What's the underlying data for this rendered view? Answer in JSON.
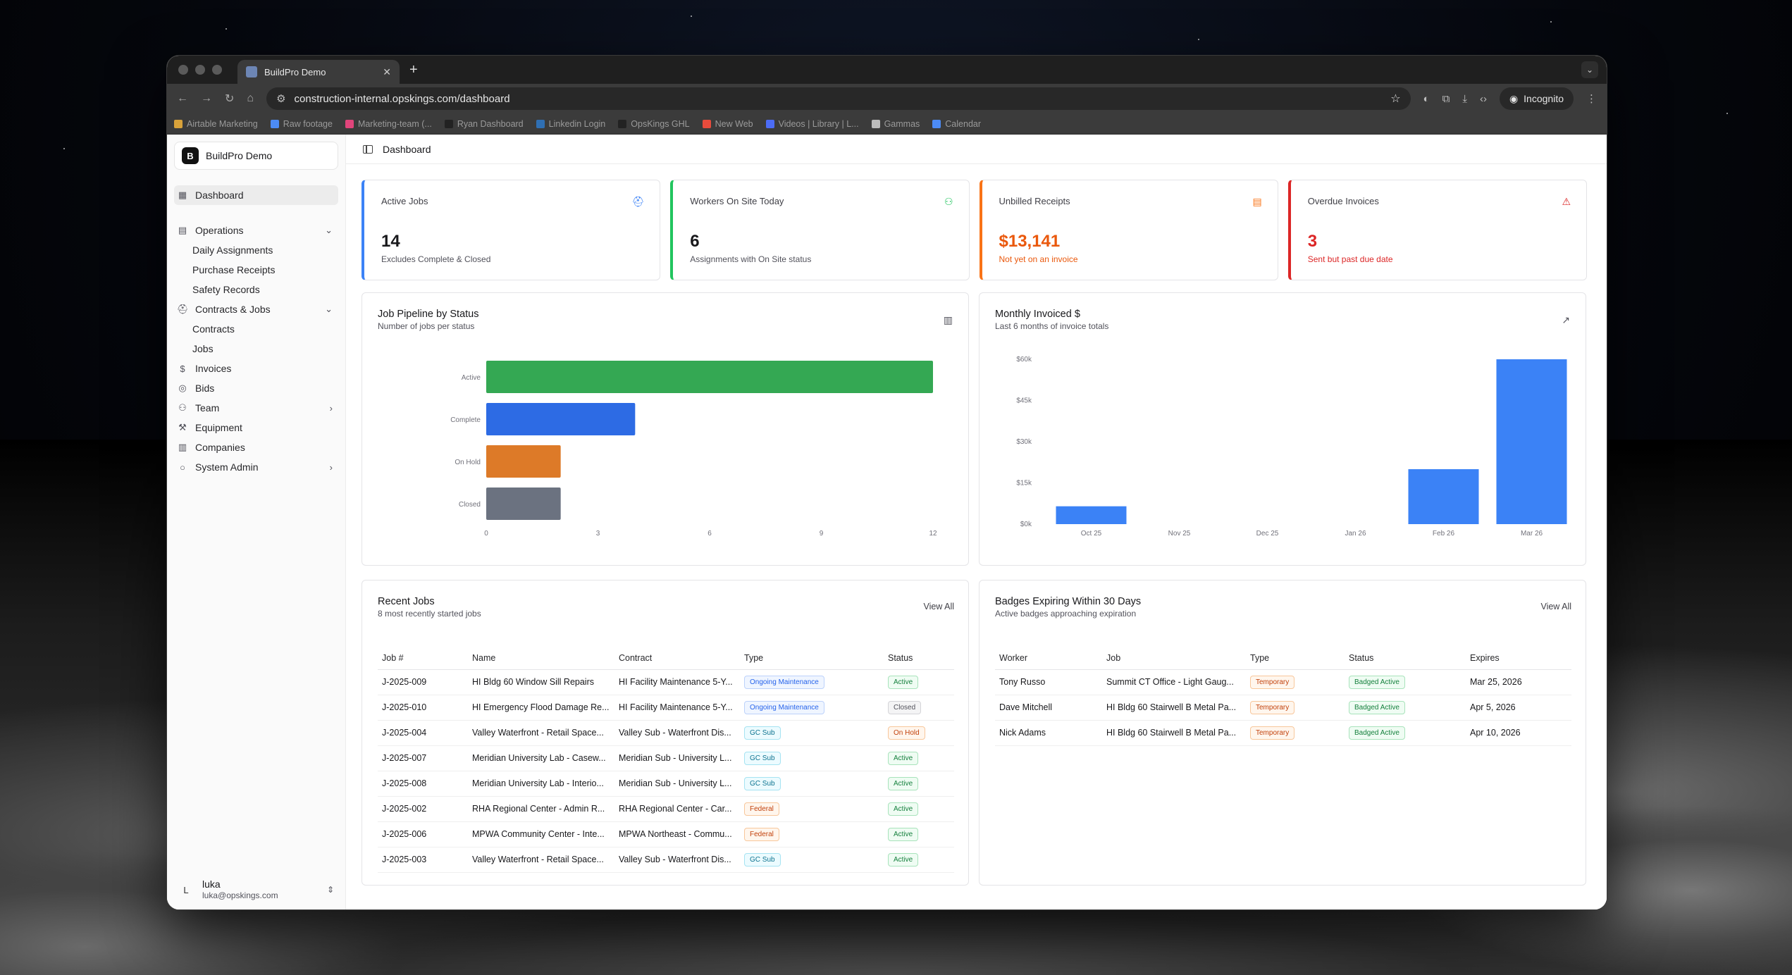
{
  "browser": {
    "tab_title": "BuildPro Demo",
    "url_domain": "construction-internal.opskings.com",
    "url_path": "/dashboard",
    "incognito_label": "Incognito",
    "bookmarks": [
      {
        "label": "Airtable Marketing",
        "color": "#d8a23a"
      },
      {
        "label": "Raw footage",
        "color": "#4c8bf5"
      },
      {
        "label": "Marketing-team (...",
        "color": "#e0457b"
      },
      {
        "label": "Ryan Dashboard",
        "color": "#222222"
      },
      {
        "label": "Linkedin Login",
        "color": "#2f6fb3"
      },
      {
        "label": "OpsKings GHL",
        "color": "#222222"
      },
      {
        "label": "New Web",
        "color": "#e74b3c"
      },
      {
        "label": "Videos | Library | L...",
        "color": "#4c6cf5"
      },
      {
        "label": "Gammas",
        "color": "#bbbbbb"
      },
      {
        "label": "Calendar",
        "color": "#4c8bf5"
      }
    ]
  },
  "sidebar": {
    "brand_initial": "B",
    "brand_name": "BuildPro Demo",
    "dashboard": "Dashboard",
    "operations": "Operations",
    "operations_items": [
      "Daily Assignments",
      "Purchase Receipts",
      "Safety Records"
    ],
    "contracts_jobs": "Contracts & Jobs",
    "contracts_items": [
      "Contracts",
      "Jobs"
    ],
    "invoices": "Invoices",
    "bids": "Bids",
    "team": "Team",
    "equipment": "Equipment",
    "companies": "Companies",
    "system_admin": "System Admin",
    "user_initial": "L",
    "user_name": "luka",
    "user_email": "luka@opskings.com"
  },
  "header": {
    "breadcrumb": "Dashboard"
  },
  "stats": [
    {
      "label": "Active Jobs",
      "value": "14",
      "sub": "Excludes Complete & Closed",
      "color": "#3b82f6",
      "icon": "hard-hat-icon"
    },
    {
      "label": "Workers On Site Today",
      "value": "6",
      "sub": "Assignments with On Site status",
      "color": "#22c55e",
      "icon": "users-icon"
    },
    {
      "label": "Unbilled Receipts",
      "value": "$13,141",
      "sub": "Not yet on an invoice",
      "color": "#f97316",
      "icon": "receipt-icon"
    },
    {
      "label": "Overdue Invoices",
      "value": "3",
      "sub": "Sent but past due date",
      "color": "#dc2626",
      "icon": "alert-triangle-icon"
    }
  ],
  "pipeline": {
    "title": "Job Pipeline by Status",
    "subtitle": "Number of jobs per status"
  },
  "monthly": {
    "title": "Monthly Invoiced $",
    "subtitle": "Last 6 months of invoice totals"
  },
  "chart_data": [
    {
      "type": "bar",
      "orientation": "horizontal",
      "categories": [
        "Active",
        "Complete",
        "On Hold",
        "Closed"
      ],
      "values": [
        12,
        4,
        2,
        2
      ],
      "colors": [
        "#34a853",
        "#2d6be4",
        "#dd7a28",
        "#6b7280"
      ],
      "xlim": [
        0,
        12
      ],
      "xticks": [
        "0",
        "3",
        "6",
        "9",
        "12"
      ],
      "grid": false
    },
    {
      "type": "bar",
      "categories": [
        "Oct 25",
        "Nov 25",
        "Dec 25",
        "Jan 26",
        "Feb 26",
        "Mar 26"
      ],
      "values": [
        6500,
        0,
        0,
        0,
        20000,
        60000
      ],
      "colors": [
        "#3b82f6"
      ],
      "ylim": [
        0,
        60000
      ],
      "yticks": [
        "$0k",
        "$15k",
        "$30k",
        "$45k",
        "$60k"
      ],
      "grid": false
    }
  ],
  "recent_jobs": {
    "title": "Recent Jobs",
    "subtitle": "8 most recently started jobs",
    "view_all": "View All",
    "columns": [
      "Job #",
      "Name",
      "Contract",
      "Type",
      "Status"
    ],
    "rows": [
      {
        "job": "J-2025-009",
        "name": "HI Bldg 60 Window Sill Repairs",
        "contract": "HI Facility Maintenance 5-Y...",
        "type": "Ongoing Maintenance",
        "type_style": "blue",
        "status": "Active",
        "status_style": "green"
      },
      {
        "job": "J-2025-010",
        "name": "HI Emergency Flood Damage Re...",
        "contract": "HI Facility Maintenance 5-Y...",
        "type": "Ongoing Maintenance",
        "type_style": "blue",
        "status": "Closed",
        "status_style": "gray"
      },
      {
        "job": "J-2025-004",
        "name": "Valley Waterfront - Retail Space...",
        "contract": "Valley Sub - Waterfront Dis...",
        "type": "GC Sub",
        "type_style": "cyan",
        "status": "On Hold",
        "status_style": "orange"
      },
      {
        "job": "J-2025-007",
        "name": "Meridian University Lab - Casew...",
        "contract": "Meridian Sub - University L...",
        "type": "GC Sub",
        "type_style": "cyan",
        "status": "Active",
        "status_style": "green"
      },
      {
        "job": "J-2025-008",
        "name": "Meridian University Lab - Interio...",
        "contract": "Meridian Sub - University L...",
        "type": "GC Sub",
        "type_style": "cyan",
        "status": "Active",
        "status_style": "green"
      },
      {
        "job": "J-2025-002",
        "name": "RHA Regional Center - Admin R...",
        "contract": "RHA Regional Center - Car...",
        "type": "Federal",
        "type_style": "orange",
        "status": "Active",
        "status_style": "green"
      },
      {
        "job": "J-2025-006",
        "name": "MPWA Community Center - Inte...",
        "contract": "MPWA Northeast - Commu...",
        "type": "Federal",
        "type_style": "orange",
        "status": "Active",
        "status_style": "green"
      },
      {
        "job": "J-2025-003",
        "name": "Valley Waterfront - Retail Space...",
        "contract": "Valley Sub - Waterfront Dis...",
        "type": "GC Sub",
        "type_style": "cyan",
        "status": "Active",
        "status_style": "green"
      }
    ]
  },
  "badges": {
    "title": "Badges Expiring Within 30 Days",
    "subtitle": "Active badges approaching expiration",
    "view_all": "View All",
    "columns": [
      "Worker",
      "Job",
      "Type",
      "Status",
      "Expires"
    ],
    "rows": [
      {
        "worker": "Tony Russo",
        "job": "Summit CT Office - Light Gaug...",
        "type": "Temporary",
        "status": "Badged Active",
        "expires": "Mar 25, 2026"
      },
      {
        "worker": "Dave Mitchell",
        "job": "HI Bldg 60 Stairwell B Metal Pa...",
        "type": "Temporary",
        "status": "Badged Active",
        "expires": "Apr 5, 2026"
      },
      {
        "worker": "Nick Adams",
        "job": "HI Bldg 60 Stairwell B Metal Pa...",
        "type": "Temporary",
        "status": "Badged Active",
        "expires": "Apr 10, 2026"
      }
    ]
  }
}
